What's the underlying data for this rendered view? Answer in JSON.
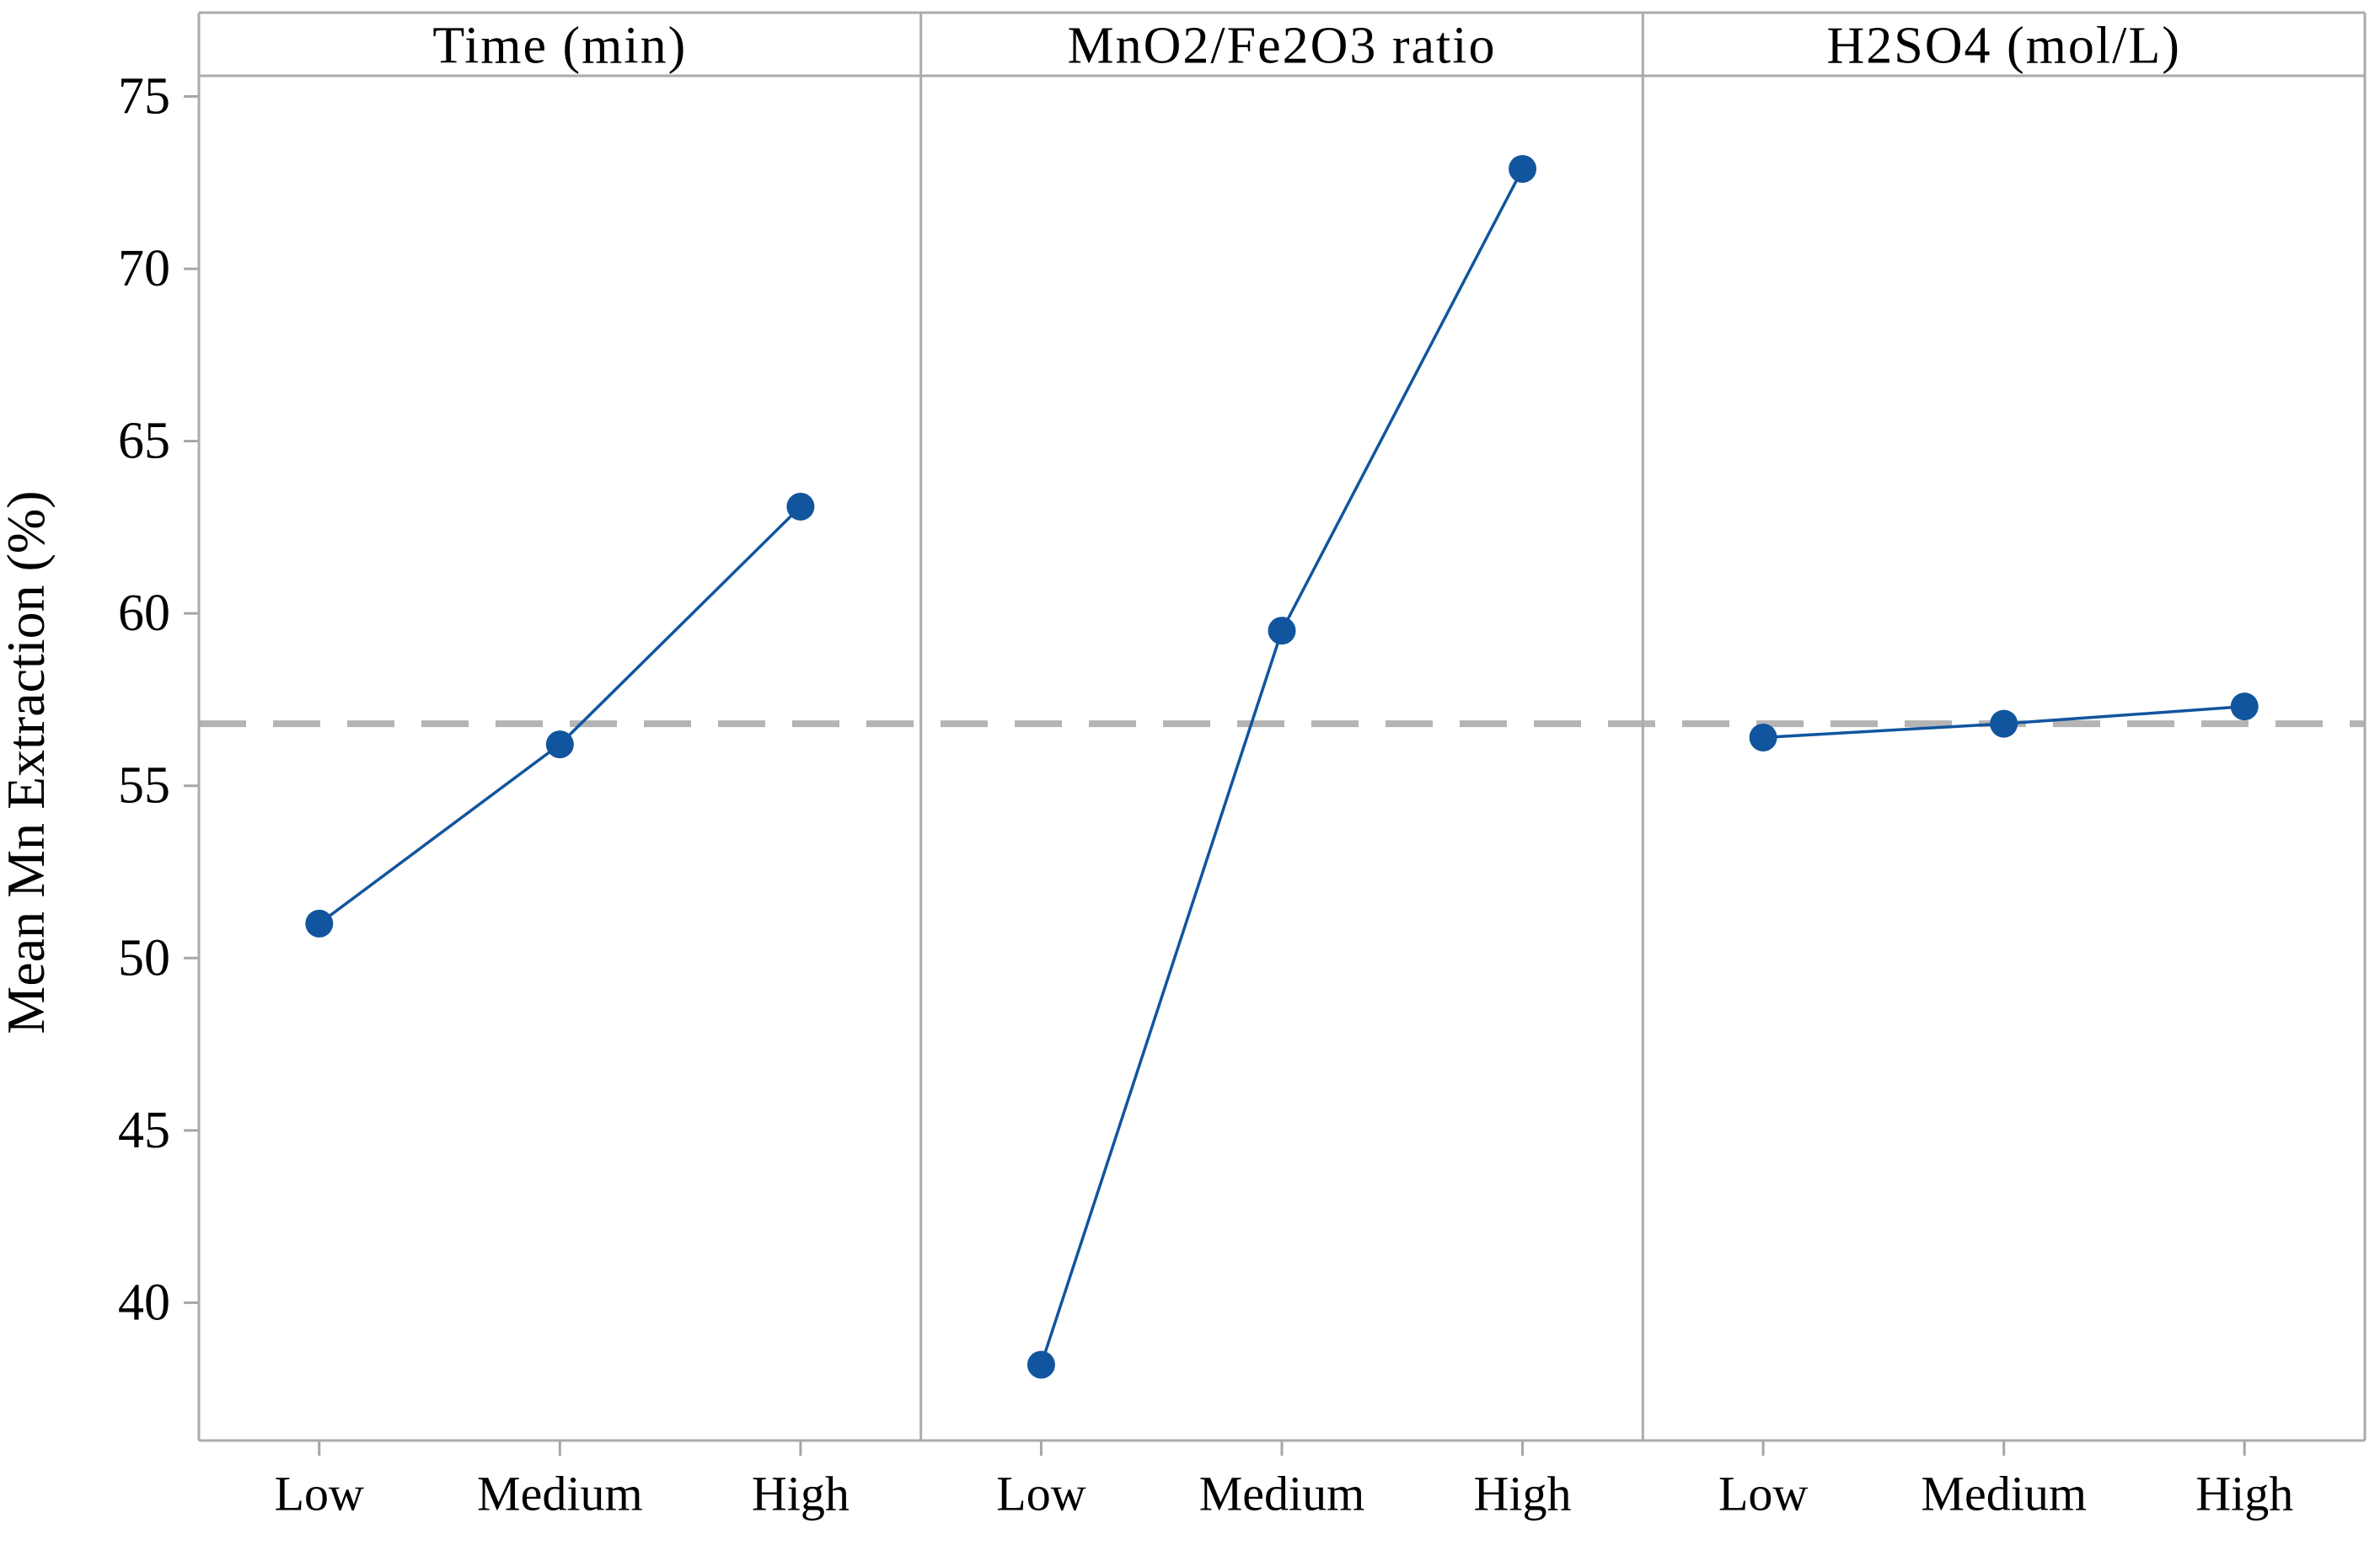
{
  "chart_data": {
    "type": "line",
    "subtype": "main-effects-plot",
    "title": "",
    "ylabel": "Mean Mn Extraction (%)",
    "categories": [
      "Low",
      "Medium",
      "High"
    ],
    "panels": [
      {
        "title": "Time (min)",
        "values": [
          51.0,
          56.2,
          63.1
        ]
      },
      {
        "title": "MnO2/Fe2O3 ratio",
        "values": [
          38.2,
          59.5,
          72.9
        ]
      },
      {
        "title": "H2SO4 (mol/L)",
        "values": [
          56.4,
          56.8,
          57.3
        ]
      }
    ],
    "y_ticks": [
      40,
      45,
      50,
      55,
      60,
      65,
      70,
      75
    ],
    "ylim": [
      36.0,
      75.6
    ],
    "reference_line": {
      "value": 56.8,
      "style": "dashed"
    },
    "grid": false,
    "legend": false,
    "colors": {
      "series": "#11559E",
      "border": "#ababab",
      "tick": "#a6a6a6",
      "reference": "#b4b4b4",
      "text": "#000000"
    }
  }
}
